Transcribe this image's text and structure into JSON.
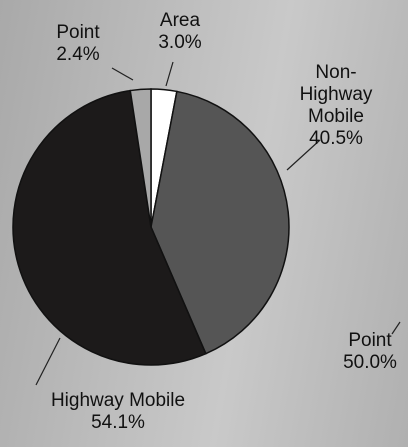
{
  "chart_data": {
    "type": "pie",
    "categories": [
      "Area",
      "Non-Highway Mobile",
      "Highway Mobile",
      "Point"
    ],
    "values": [
      3.0,
      40.5,
      54.1,
      2.4
    ],
    "value_labels": [
      "3.0%",
      "40.5%",
      "54.1%",
      "2.4%"
    ],
    "colors": [
      "#ffffff",
      "#555555",
      "#1c1a1a",
      "#a8a8a8"
    ],
    "annotations": [
      "Point",
      "50.0%"
    ]
  }
}
